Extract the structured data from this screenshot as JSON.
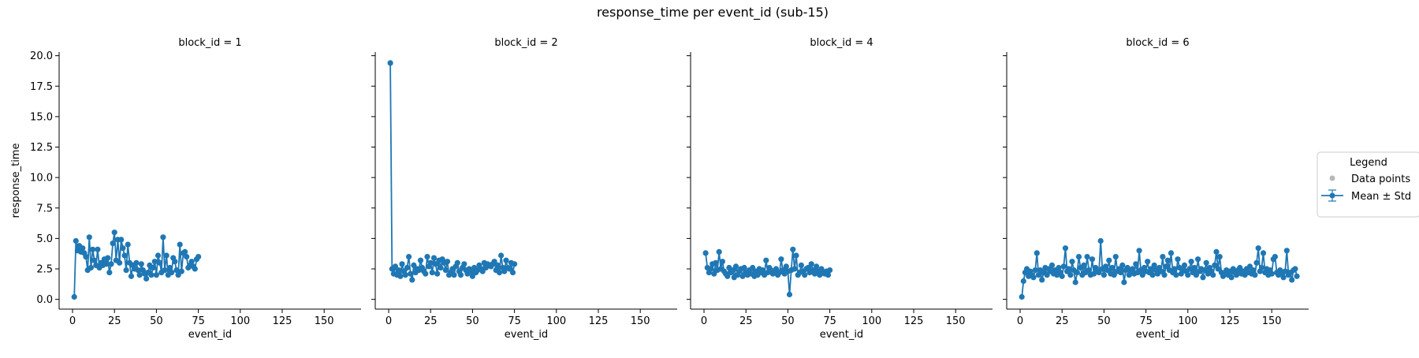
{
  "figure_title": "response_time per event_id (sub-15)",
  "legend": {
    "title": "Legend",
    "items": [
      {
        "label": "Data points",
        "color": "#b8b8b8"
      },
      {
        "label": "Mean ± Std",
        "color": "#1f77b4"
      }
    ]
  },
  "chart_data": {
    "type": "line",
    "title": "response_time per event_id (sub-15)",
    "xlabel": "event_id",
    "ylabel": "response_time",
    "xlim": [
      -8,
      172
    ],
    "ylim": [
      -0.8,
      20.3
    ],
    "xticks": [
      0,
      25,
      50,
      75,
      100,
      125,
      150
    ],
    "yticks": [
      0.0,
      2.5,
      5.0,
      7.5,
      10.0,
      12.5,
      15.0,
      17.5,
      20.0
    ],
    "ytick_labels": [
      "0.0",
      "2.5",
      "5.0",
      "7.5",
      "10.0",
      "12.5",
      "15.0",
      "17.5",
      "20.0"
    ],
    "grid": false,
    "legend_position": "right",
    "line_color": "#1f77b4",
    "panels": [
      {
        "title": "block_id = 1",
        "x": [
          1,
          2,
          3,
          4,
          5,
          6,
          7,
          8,
          9,
          10,
          11,
          12,
          13,
          14,
          15,
          16,
          17,
          18,
          19,
          20,
          21,
          22,
          23,
          24,
          25,
          26,
          27,
          28,
          29,
          30,
          31,
          32,
          33,
          34,
          35,
          36,
          37,
          38,
          39,
          40,
          41,
          42,
          43,
          44,
          45,
          46,
          47,
          48,
          49,
          50,
          51,
          52,
          53,
          54,
          55,
          56,
          57,
          58,
          59,
          60,
          61,
          62,
          63,
          64,
          65,
          66,
          67,
          68,
          69,
          70,
          71,
          72,
          73,
          74,
          75
        ],
        "y": [
          0.2,
          4.8,
          4.0,
          4.4,
          3.9,
          4.2,
          3.8,
          3.5,
          2.4,
          5.1,
          2.6,
          4.1,
          3.2,
          2.8,
          4.1,
          2.6,
          3.0,
          2.8,
          3.3,
          2.9,
          3.4,
          2.2,
          2.9,
          4.6,
          5.5,
          3.2,
          4.9,
          3.0,
          4.9,
          4.2,
          3.6,
          2.4,
          4.5,
          3.0,
          1.9,
          2.8,
          2.5,
          3.0,
          2.4,
          2.0,
          2.9,
          2.4,
          2.1,
          1.7,
          2.2,
          2.8,
          2.0,
          2.6,
          3.1,
          2.0,
          3.6,
          3.0,
          2.2,
          5.1,
          2.4,
          3.6,
          2.0,
          2.6,
          2.2,
          3.4,
          3.1,
          2.4,
          2.0,
          4.5,
          2.3,
          3.8,
          3.9,
          3.5,
          2.6,
          2.8,
          3.1,
          2.7,
          2.5,
          3.3,
          3.5
        ]
      },
      {
        "title": "block_id = 2",
        "x": [
          1,
          2,
          3,
          4,
          5,
          6,
          7,
          8,
          9,
          10,
          11,
          12,
          13,
          14,
          15,
          16,
          17,
          18,
          19,
          20,
          21,
          22,
          23,
          24,
          25,
          26,
          27,
          28,
          29,
          30,
          31,
          32,
          33,
          34,
          35,
          36,
          37,
          38,
          39,
          40,
          41,
          42,
          43,
          44,
          45,
          46,
          47,
          48,
          49,
          50,
          51,
          52,
          53,
          54,
          55,
          56,
          57,
          58,
          59,
          60,
          61,
          62,
          63,
          64,
          65,
          66,
          67,
          68,
          69,
          70,
          71,
          72,
          73,
          74,
          75
        ],
        "y": [
          19.4,
          2.5,
          2.1,
          2.7,
          2.0,
          2.4,
          1.9,
          2.9,
          2.3,
          2.0,
          2.6,
          3.5,
          2.1,
          1.6,
          2.8,
          2.2,
          2.5,
          2.4,
          3.2,
          2.6,
          2.3,
          2.1,
          3.5,
          2.7,
          3.0,
          2.2,
          3.4,
          2.9,
          2.1,
          3.2,
          2.6,
          3.3,
          3.0,
          2.4,
          3.1,
          2.0,
          2.2,
          2.5,
          2.0,
          2.7,
          3.0,
          2.3,
          2.0,
          2.6,
          2.9,
          2.4,
          2.1,
          2.5,
          2.3,
          1.9,
          2.6,
          2.2,
          2.4,
          2.8,
          2.5,
          2.3,
          3.0,
          2.6,
          2.9,
          2.8,
          2.7,
          2.9,
          3.1,
          2.4,
          2.8,
          2.2,
          3.6,
          2.6,
          2.3,
          3.2,
          2.6,
          2.5,
          3.0,
          2.2,
          2.9
        ]
      },
      {
        "title": "block_id = 4",
        "x": [
          1,
          2,
          3,
          4,
          5,
          6,
          7,
          8,
          9,
          10,
          11,
          12,
          13,
          14,
          15,
          16,
          17,
          18,
          19,
          20,
          21,
          22,
          23,
          24,
          25,
          26,
          27,
          28,
          29,
          30,
          31,
          32,
          33,
          34,
          35,
          36,
          37,
          38,
          39,
          40,
          41,
          42,
          43,
          44,
          45,
          46,
          47,
          48,
          49,
          50,
          51,
          52,
          53,
          54,
          55,
          56,
          57,
          58,
          59,
          60,
          61,
          62,
          63,
          64,
          65,
          66,
          67,
          68,
          69,
          70,
          71,
          72,
          73,
          74,
          75
        ],
        "y": [
          3.8,
          2.6,
          2.2,
          2.5,
          2.9,
          2.1,
          3.0,
          2.4,
          3.9,
          2.5,
          3.1,
          2.3,
          2.1,
          1.9,
          2.6,
          2.2,
          2.4,
          1.8,
          2.7,
          2.0,
          2.3,
          2.5,
          1.9,
          2.6,
          2.2,
          2.0,
          2.4,
          2.1,
          2.6,
          1.9,
          2.3,
          2.0,
          2.5,
          2.2,
          2.4,
          2.0,
          3.2,
          2.2,
          2.6,
          2.4,
          2.1,
          2.3,
          2.5,
          2.0,
          2.2,
          3.3,
          2.4,
          2.1,
          2.7,
          2.3,
          0.4,
          2.4,
          4.1,
          2.5,
          3.6,
          2.0,
          2.2,
          2.8,
          2.3,
          2.0,
          2.5,
          2.6,
          2.2,
          2.9,
          2.4,
          2.1,
          2.7,
          2.3,
          2.0,
          2.5,
          2.2,
          2.1,
          2.3,
          2.0,
          2.4
        ]
      },
      {
        "title": "block_id = 6",
        "x": [
          1,
          2,
          3,
          4,
          5,
          6,
          7,
          8,
          9,
          10,
          11,
          12,
          13,
          14,
          15,
          16,
          17,
          18,
          19,
          20,
          21,
          22,
          23,
          24,
          25,
          26,
          27,
          28,
          29,
          30,
          31,
          32,
          33,
          34,
          35,
          36,
          37,
          38,
          39,
          40,
          41,
          42,
          43,
          44,
          45,
          46,
          47,
          48,
          49,
          50,
          51,
          52,
          53,
          54,
          55,
          56,
          57,
          58,
          59,
          60,
          61,
          62,
          63,
          64,
          65,
          66,
          67,
          68,
          69,
          70,
          71,
          72,
          73,
          74,
          75,
          76,
          77,
          78,
          79,
          80,
          81,
          82,
          83,
          84,
          85,
          86,
          87,
          88,
          89,
          90,
          91,
          92,
          93,
          94,
          95,
          96,
          97,
          98,
          99,
          100,
          101,
          102,
          103,
          104,
          105,
          106,
          107,
          108,
          109,
          110,
          111,
          112,
          113,
          114,
          115,
          116,
          117,
          118,
          119,
          120,
          121,
          122,
          123,
          124,
          125,
          126,
          127,
          128,
          129,
          130,
          131,
          132,
          133,
          134,
          135,
          136,
          137,
          138,
          139,
          140,
          141,
          142,
          143,
          144,
          145,
          146,
          147,
          148,
          149,
          150,
          151,
          152,
          153,
          154,
          155,
          156,
          157,
          158,
          159,
          160,
          161,
          162,
          163,
          164,
          165
        ],
        "y": [
          0.2,
          1.5,
          2.2,
          2.5,
          1.9,
          2.3,
          2.0,
          1.8,
          2.4,
          3.8,
          2.0,
          2.4,
          1.6,
          2.2,
          2.6,
          2.0,
          2.5,
          2.3,
          2.8,
          2.1,
          2.4,
          2.0,
          2.6,
          2.2,
          1.9,
          2.7,
          4.2,
          2.3,
          2.5,
          2.0,
          3.1,
          2.4,
          1.4,
          2.2,
          3.5,
          2.6,
          2.0,
          2.8,
          2.2,
          3.5,
          2.4,
          2.0,
          3.3,
          2.1,
          2.6,
          2.3,
          2.2,
          4.8,
          2.5,
          2.0,
          2.7,
          2.4,
          3.2,
          2.1,
          2.6,
          2.0,
          3.5,
          2.3,
          2.5,
          2.2,
          2.8,
          1.4,
          2.4,
          2.6,
          2.0,
          2.3,
          2.5,
          2.1,
          2.9,
          2.2,
          4.0,
          2.4,
          2.0,
          2.6,
          2.3,
          3.1,
          2.2,
          2.5,
          2.0,
          2.8,
          2.4,
          2.1,
          2.6,
          2.3,
          3.5,
          2.0,
          2.7,
          3.2,
          2.4,
          3.8,
          2.2,
          2.5,
          2.0,
          3.3,
          2.6,
          2.1,
          2.4,
          2.8,
          2.3,
          2.0,
          2.5,
          3.1,
          2.2,
          2.6,
          2.0,
          3.3,
          2.3,
          2.5,
          1.8,
          2.4,
          3.0,
          2.1,
          2.6,
          2.3,
          2.0,
          2.8,
          3.9,
          2.5,
          3.5,
          2.2,
          1.9,
          2.1,
          2.4,
          2.0,
          2.3,
          1.8,
          2.5,
          2.2,
          2.0,
          2.4,
          2.6,
          2.1,
          2.3,
          2.0,
          2.5,
          2.2,
          2.7,
          2.1,
          2.4,
          2.0,
          3.0,
          4.2,
          2.3,
          2.6,
          3.8,
          2.2,
          2.5,
          2.0,
          2.4,
          2.1,
          3.3,
          3.5,
          2.2,
          2.0,
          2.4,
          2.1,
          1.8,
          2.3,
          4.0,
          2.0,
          2.2,
          1.6,
          2.4,
          2.5,
          1.9
        ]
      }
    ]
  }
}
